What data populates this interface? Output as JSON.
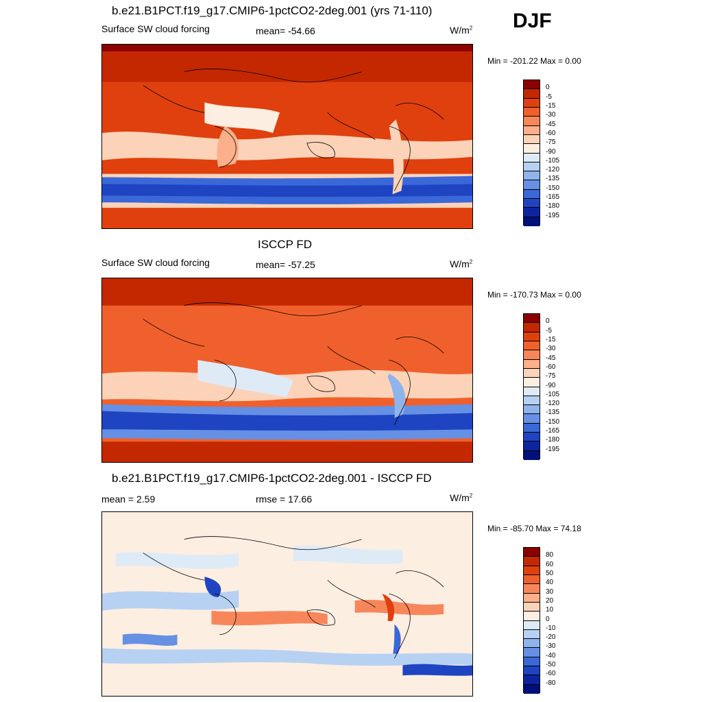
{
  "season": "DJF",
  "units_main": "W/m",
  "units_sup": "2",
  "panels": [
    {
      "title": "b.e21.B1PCT.f19_g17.CMIP6-1pctCO2-2deg.001 (yrs 71-110)",
      "left_label": "Surface SW cloud forcing",
      "center_label": "mean= -54.66",
      "minmax": "Min = -201.22 Max =    0.00"
    },
    {
      "title": "ISCCP FD",
      "left_label": "Surface SW cloud forcing",
      "center_label": "mean= -57.25",
      "minmax": "Min = -170.73 Max =    0.00"
    },
    {
      "title": "b.e21.B1PCT.f19_g17.CMIP6-1pctCO2-2deg.001 - ISCCP FD",
      "left_label": "mean =   2.59",
      "center_label": "rmse =  17.66",
      "minmax": "Min = -85.70 Max =  74.18"
    }
  ],
  "colorbar_abs": {
    "labels": [
      "0",
      "-5",
      "-15",
      "-30",
      "-45",
      "-60",
      "-75",
      "-90",
      "-105",
      "-120",
      "-135",
      "-150",
      "-165",
      "-180",
      "-195"
    ],
    "colors": [
      "#8b0000",
      "#c42800",
      "#e0400e",
      "#f0602c",
      "#f7875a",
      "#fbaf8a",
      "#fcd3b8",
      "#fdeee2",
      "#deebf7",
      "#b7d1f2",
      "#8fb4ec",
      "#6590e4",
      "#3a68d8",
      "#1f44c2",
      "#0d24a0",
      "#00107a"
    ]
  },
  "colorbar_diff": {
    "labels": [
      "80",
      "60",
      "50",
      "40",
      "30",
      "20",
      "10",
      "0",
      "-10",
      "-20",
      "-30",
      "-40",
      "-50",
      "-60",
      "-80"
    ],
    "colors": [
      "#8b0000",
      "#c42800",
      "#e0400e",
      "#f0602c",
      "#f7875a",
      "#fbaf8a",
      "#fcd3b8",
      "#fdeee2",
      "#deebf7",
      "#b7d1f2",
      "#8fb4ec",
      "#6590e4",
      "#3a68d8",
      "#1f44c2",
      "#0d24a0",
      "#00107a"
    ]
  }
}
